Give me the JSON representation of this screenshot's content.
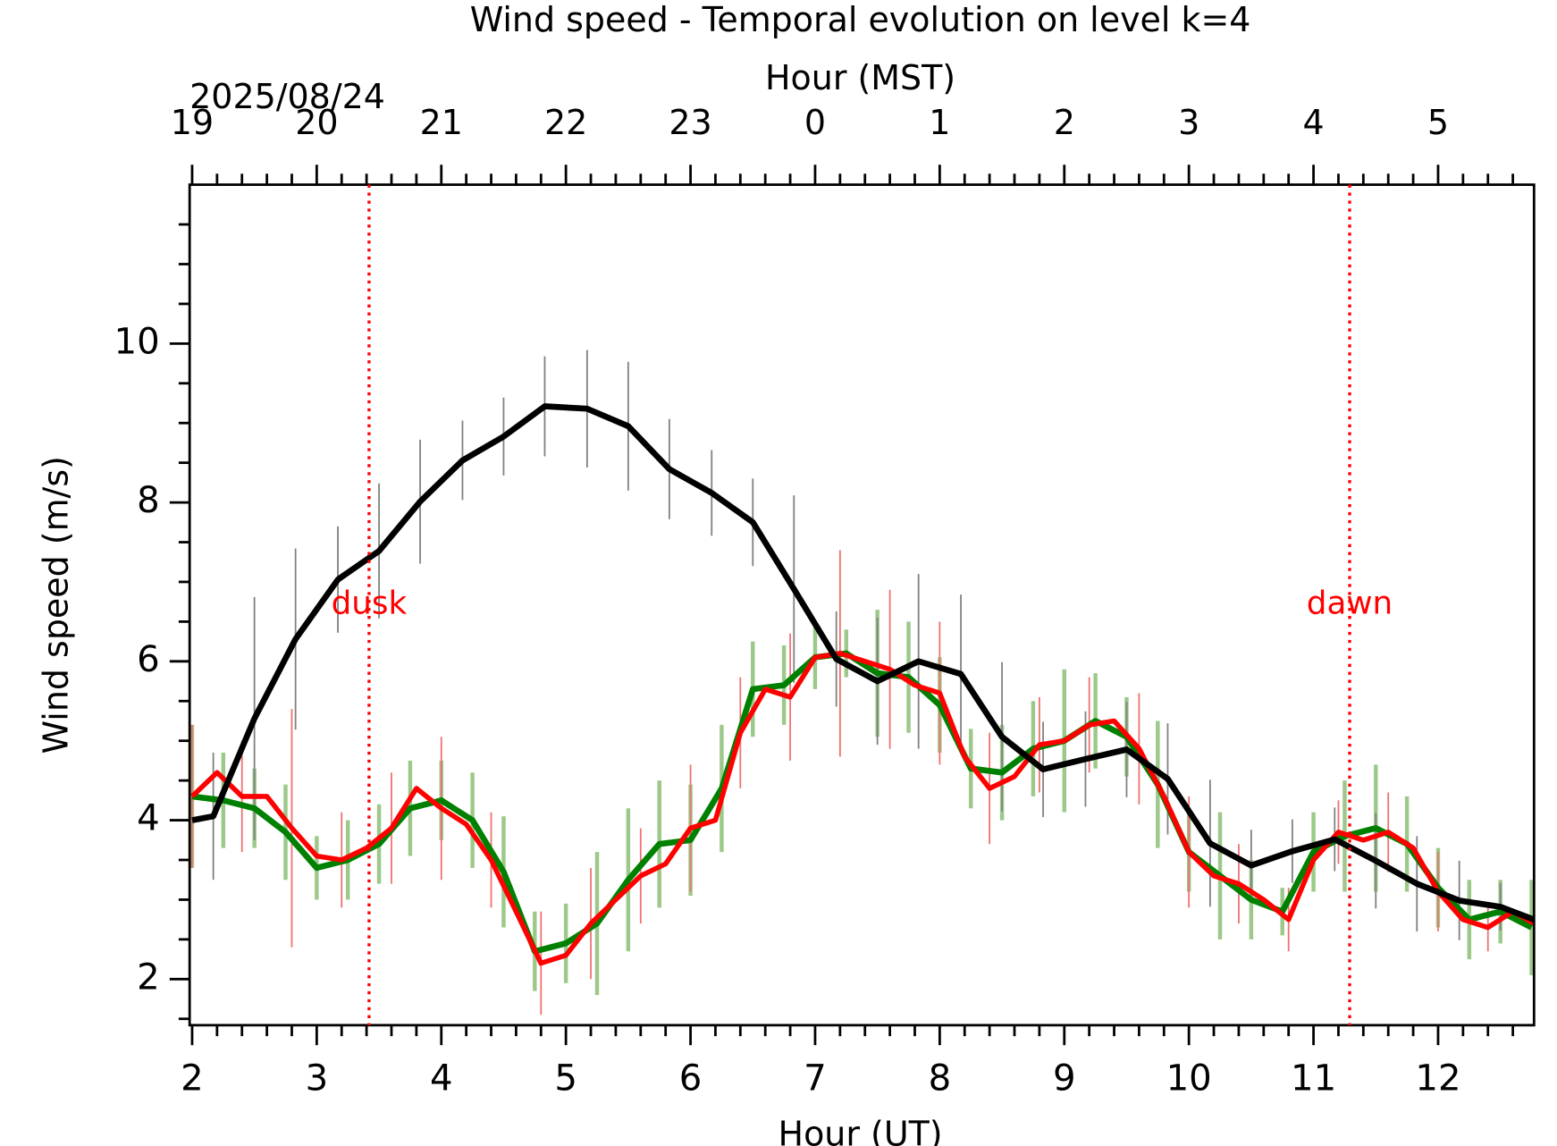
{
  "chart_data": {
    "type": "line",
    "title": "Wind speed - Temporal evolution on level k=4",
    "xlabel": "Hour (UT)",
    "x2label": "Hour (MST)",
    "ylabel": "Wind speed (m/s)",
    "date_label": "2025/08/24",
    "xlim": [
      1.98,
      12.77
    ],
    "ylim": [
      1.42,
      12.0
    ],
    "xticks": [
      2,
      3,
      4,
      5,
      6,
      7,
      8,
      9,
      10,
      11,
      12
    ],
    "x2ticks": [
      {
        "value": 2,
        "label": "19"
      },
      {
        "value": 3,
        "label": "20"
      },
      {
        "value": 4,
        "label": "21"
      },
      {
        "value": 5,
        "label": "22"
      },
      {
        "value": 6,
        "label": "23"
      },
      {
        "value": 7,
        "label": "0"
      },
      {
        "value": 8,
        "label": "1"
      },
      {
        "value": 9,
        "label": "2"
      },
      {
        "value": 10,
        "label": "3"
      },
      {
        "value": 11,
        "label": "4"
      },
      {
        "value": 12,
        "label": "5"
      }
    ],
    "xminorticks": [
      2.2,
      2.4,
      2.6,
      2.8,
      3.2,
      3.4,
      3.6,
      3.8,
      4.2,
      4.4,
      4.6,
      4.8,
      5.2,
      5.4,
      5.6,
      5.8,
      6.2,
      6.4,
      6.6,
      6.8,
      7.2,
      7.4,
      7.6,
      7.8,
      8.2,
      8.4,
      8.6,
      8.8,
      9.2,
      9.4,
      9.6,
      9.8,
      10.2,
      10.4,
      10.6,
      10.8,
      11.2,
      11.4,
      11.6,
      11.8,
      12.2,
      12.4,
      12.6
    ],
    "yticks": [
      2,
      4,
      6,
      8,
      10
    ],
    "yminorticks": [
      1.5,
      2.5,
      3,
      3.5,
      4.5,
      5,
      5.5,
      6.5,
      7,
      7.5,
      8.5,
      9,
      9.5,
      10.5,
      11,
      11.5
    ],
    "vlines": [
      {
        "x": 3.42,
        "label": "dusk",
        "color": "#ff0000"
      },
      {
        "x": 11.29,
        "label": "dawn",
        "color": "#ff0000"
      }
    ],
    "series": [
      {
        "color": "#008000",
        "error_color": "#9cc98a",
        "width": 6,
        "x": [
          2.0,
          2.25,
          2.5,
          2.75,
          3.0,
          3.25,
          3.5,
          3.75,
          4.0,
          4.25,
          4.5,
          4.75,
          5.0,
          5.25,
          5.5,
          5.75,
          6.0,
          6.25,
          6.5,
          6.75,
          7.0,
          7.25,
          7.5,
          7.75,
          8.0,
          8.25,
          8.5,
          8.75,
          9.0,
          9.25,
          9.5,
          9.75,
          10.0,
          10.25,
          10.5,
          10.75,
          11.0,
          11.25,
          11.5,
          11.75,
          12.0,
          12.25,
          12.5,
          12.75
        ],
        "values": [
          4.3,
          4.25,
          4.15,
          3.85,
          3.4,
          3.5,
          3.7,
          4.15,
          4.25,
          4.0,
          3.35,
          2.35,
          2.45,
          2.7,
          3.25,
          3.7,
          3.75,
          4.4,
          5.65,
          5.7,
          6.05,
          6.1,
          5.85,
          5.8,
          5.45,
          4.65,
          4.6,
          4.9,
          5.0,
          5.25,
          5.05,
          4.45,
          3.6,
          3.3,
          3.0,
          2.85,
          3.6,
          3.8,
          3.9,
          3.7,
          3.15,
          2.75,
          2.85,
          2.65
        ],
        "errors": [
          0.9,
          0.6,
          0.5,
          0.6,
          0.4,
          0.5,
          0.5,
          0.6,
          0.5,
          0.6,
          0.7,
          0.5,
          0.5,
          0.9,
          0.9,
          0.8,
          0.7,
          0.8,
          0.6,
          0.5,
          0.4,
          0.3,
          0.8,
          0.7,
          0.6,
          0.5,
          0.6,
          0.6,
          0.9,
          0.6,
          0.5,
          0.8,
          0.5,
          0.8,
          0.5,
          0.3,
          0.5,
          0.7,
          0.8,
          0.6,
          0.5,
          0.5,
          0.4,
          0.6
        ]
      },
      {
        "color": "#ff0000",
        "error_color": "#f07070",
        "width": 5,
        "x": [
          2.0,
          2.2,
          2.4,
          2.6,
          2.8,
          3.0,
          3.2,
          3.4,
          3.6,
          3.8,
          4.0,
          4.2,
          4.4,
          4.6,
          4.8,
          5.0,
          5.2,
          5.4,
          5.6,
          5.8,
          6.0,
          6.2,
          6.4,
          6.6,
          6.8,
          7.0,
          7.2,
          7.4,
          7.6,
          7.8,
          8.0,
          8.2,
          8.4,
          8.6,
          8.8,
          9.0,
          9.2,
          9.4,
          9.6,
          9.8,
          10.0,
          10.2,
          10.4,
          10.6,
          10.8,
          11.0,
          11.2,
          11.4,
          11.6,
          11.8,
          12.0,
          12.2,
          12.4,
          12.6,
          12.77
        ],
        "values": [
          4.3,
          4.6,
          4.3,
          4.3,
          3.9,
          3.55,
          3.5,
          3.65,
          3.9,
          4.4,
          4.15,
          3.95,
          3.5,
          2.85,
          2.2,
          2.3,
          2.7,
          3.0,
          3.3,
          3.45,
          3.9,
          4.0,
          5.1,
          5.65,
          5.55,
          6.05,
          6.1,
          6.0,
          5.9,
          5.7,
          5.6,
          4.8,
          4.4,
          4.55,
          4.95,
          5.0,
          5.2,
          5.25,
          4.9,
          4.3,
          3.6,
          3.3,
          3.2,
          3.0,
          2.75,
          3.5,
          3.85,
          3.75,
          3.85,
          3.65,
          3.1,
          2.75,
          2.65,
          2.85,
          2.7
        ],
        "errors": [
          0.9,
          null,
          0.7,
          null,
          1.5,
          null,
          0.6,
          null,
          0.7,
          null,
          0.9,
          null,
          0.6,
          null,
          0.65,
          null,
          0.7,
          null,
          0.6,
          null,
          0.8,
          null,
          0.7,
          null,
          0.8,
          null,
          1.3,
          null,
          1.0,
          null,
          0.9,
          null,
          0.7,
          null,
          0.6,
          null,
          0.6,
          null,
          0.7,
          null,
          0.7,
          null,
          0.5,
          null,
          0.4,
          null,
          0.4,
          null,
          0.5,
          null,
          0.5,
          null,
          0.3,
          null,
          0.3
        ]
      },
      {
        "color": "#000000",
        "error_color": "#808080",
        "width": 6,
        "x": [
          2.0,
          2.17,
          2.5,
          2.83,
          3.17,
          3.5,
          3.83,
          4.17,
          4.5,
          4.83,
          5.17,
          5.5,
          5.83,
          6.17,
          6.5,
          6.83,
          7.17,
          7.5,
          7.83,
          8.17,
          8.5,
          8.83,
          9.17,
          9.5,
          9.83,
          10.17,
          10.5,
          10.83,
          11.17,
          11.5,
          11.83,
          12.17,
          12.5,
          12.77
        ],
        "values": [
          4.0,
          4.05,
          5.28,
          6.28,
          7.03,
          7.39,
          8.01,
          8.53,
          8.83,
          9.21,
          9.18,
          8.96,
          8.42,
          8.12,
          7.75,
          6.91,
          6.03,
          5.75,
          6.0,
          5.84,
          5.05,
          4.64,
          4.77,
          4.89,
          4.52,
          3.71,
          3.43,
          3.61,
          3.76,
          3.49,
          3.2,
          2.99,
          2.91,
          2.75
        ],
        "errors": [
          null,
          0.8,
          1.53,
          1.14,
          0.67,
          0.85,
          0.78,
          0.5,
          0.49,
          0.63,
          0.74,
          0.81,
          0.63,
          0.54,
          0.55,
          1.18,
          0.6,
          0.8,
          1.1,
          1.0,
          0.94,
          0.6,
          0.6,
          0.6,
          0.7,
          0.8,
          0.45,
          0.4,
          0.4,
          0.6,
          0.6,
          0.5,
          0.3,
          null
        ]
      }
    ]
  }
}
